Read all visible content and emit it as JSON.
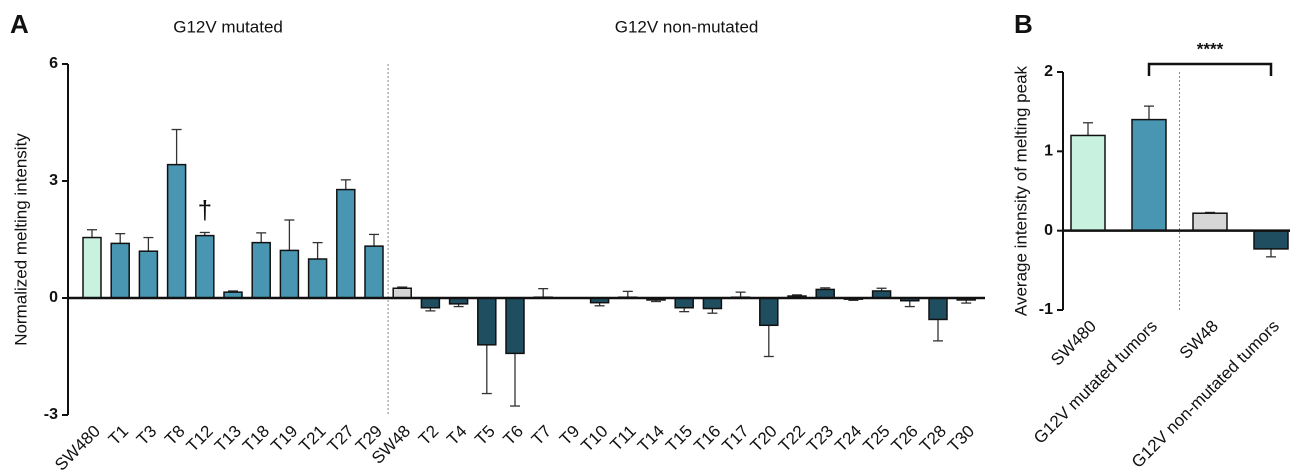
{
  "chart_data": [
    {
      "type": "bar",
      "panel": "A",
      "annotations": [
        "G12V mutated",
        "G12V non-mutated",
        "†"
      ],
      "ylabel": "Normalized melting intensity",
      "categories": [
        "SW480",
        "T1",
        "T3",
        "T8",
        "T12",
        "T13",
        "T18",
        "T19",
        "T21",
        "T27",
        "T29",
        "SW48",
        "T2",
        "T4",
        "T5",
        "T6",
        "T7",
        "T9",
        "T10",
        "T11",
        "T14",
        "T15",
        "T16",
        "T17",
        "T20",
        "T22",
        "T23",
        "T24",
        "T25",
        "T26",
        "T28",
        "T30"
      ],
      "values": [
        1.55,
        1.4,
        1.2,
        3.42,
        1.6,
        0.15,
        1.42,
        1.22,
        1.0,
        2.78,
        1.33,
        0.25,
        -0.25,
        -0.15,
        -1.2,
        -1.42,
        0.02,
        0.0,
        -0.12,
        0.02,
        -0.05,
        -0.25,
        -0.27,
        0.02,
        -0.7,
        0.05,
        0.22,
        -0.03,
        0.18,
        -0.07,
        -0.55,
        -0.05
      ],
      "errors": [
        0.2,
        0.25,
        0.35,
        0.9,
        0.08,
        0.03,
        0.25,
        0.78,
        0.42,
        0.25,
        0.3,
        0.03,
        0.08,
        0.07,
        1.25,
        1.35,
        0.22,
        0.0,
        0.08,
        0.15,
        0.04,
        0.1,
        0.12,
        0.13,
        0.8,
        0.03,
        0.04,
        0.03,
        0.07,
        0.15,
        0.55,
        0.08
      ],
      "colors": [
        "#c8f2df",
        "#4996b3",
        "#4996b3",
        "#4996b3",
        "#4996b3",
        "#4996b3",
        "#4996b3",
        "#4996b3",
        "#4996b3",
        "#4996b3",
        "#4996b3",
        "#d6d6d6",
        "#1f4e60",
        "#1f4e60",
        "#1f4e60",
        "#1f4e60",
        "#1f4e60",
        "#1f4e60",
        "#1f4e60",
        "#1f4e60",
        "#1f4e60",
        "#1f4e60",
        "#1f4e60",
        "#1f4e60",
        "#1f4e60",
        "#1f4e60",
        "#1f4e60",
        "#1f4e60",
        "#1f4e60",
        "#1f4e60",
        "#1f4e60",
        "#1f4e60"
      ],
      "ylim": [
        -3,
        6
      ],
      "yticks": [
        -3,
        0,
        3,
        6
      ]
    },
    {
      "type": "bar",
      "panel": "B",
      "annotations": [
        "****"
      ],
      "ylabel": "Average intensity of melting peak",
      "categories": [
        "SW480",
        "G12V mutated tumors",
        "SW48",
        "G12V non-mutated tumors"
      ],
      "values": [
        1.2,
        1.4,
        0.22,
        -0.23
      ],
      "errors": [
        0.16,
        0.17,
        0.01,
        0.1
      ],
      "colors": [
        "#c8f2df",
        "#4996b3",
        "#d6d6d6",
        "#1f4e60"
      ],
      "ylim": [
        -1,
        2
      ],
      "yticks": [
        -1,
        0,
        1,
        2
      ]
    }
  ]
}
